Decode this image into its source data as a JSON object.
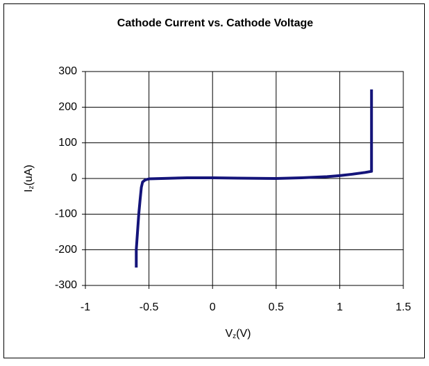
{
  "chart_data": {
    "type": "line",
    "title": "Cathode Current vs. Cathode Voltage",
    "x_label": [
      "V",
      "z",
      "(V)"
    ],
    "y_label": [
      "I",
      "z",
      "(uA)"
    ],
    "series": [
      {
        "color": "#14147a",
        "x": [
          -0.6,
          -0.6,
          -0.59,
          -0.58,
          -0.57,
          -0.56,
          -0.55,
          -0.53,
          -0.5,
          -0.4,
          -0.2,
          0,
          0.2,
          0.5,
          0.7,
          0.9,
          1.0,
          1.1,
          1.2,
          1.25,
          1.25,
          1.25,
          1.25
        ],
        "values": [
          -250,
          -200,
          -150,
          -100,
          -60,
          -25,
          -10,
          -4,
          -1,
          0,
          2,
          2,
          1,
          0,
          2,
          5,
          8,
          12,
          17,
          20,
          60,
          150,
          250
        ]
      }
    ],
    "xlim": [
      -1,
      1.5
    ],
    "ylim": [
      -300,
      300
    ],
    "xticks": [
      -1,
      -0.5,
      0,
      0.5,
      1,
      1.5
    ],
    "yticks": [
      -300,
      -200,
      -100,
      0,
      100,
      200,
      300
    ],
    "grid": true
  }
}
